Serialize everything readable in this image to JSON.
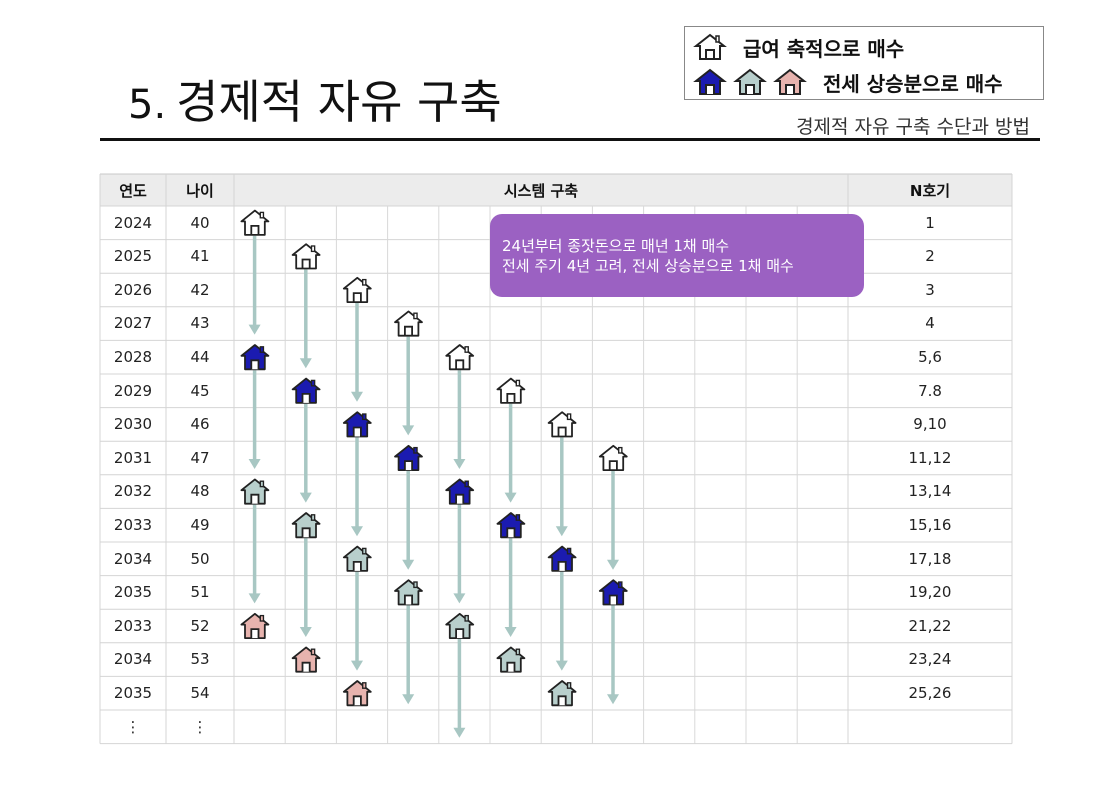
{
  "title": {
    "number": "5.",
    "text": "경제적 자유 구축"
  },
  "subtitle": "경제적 자유 구축 수단과 방법",
  "legend": {
    "salary_label": "급여 축적으로 매수",
    "deposit_label": "전세 상승분으로 매수"
  },
  "colors": {
    "white_house": "#ffffff",
    "blue_house": "#1b1bb0",
    "gray_house": "#b8cfcc",
    "pink_house": "#e7b3ae",
    "arrow": "#a8c7c3",
    "note_bg": "#9b61c2",
    "header_bg": "#ececec"
  },
  "table": {
    "headers": {
      "year": "연도",
      "age": "나이",
      "system": "시스템 구축",
      "n": "N호기"
    },
    "rows": [
      {
        "year": "2024",
        "age": "40",
        "n": "1"
      },
      {
        "year": "2025",
        "age": "41",
        "n": "2"
      },
      {
        "year": "2026",
        "age": "42",
        "n": "3"
      },
      {
        "year": "2027",
        "age": "43",
        "n": "4"
      },
      {
        "year": "2028",
        "age": "44",
        "n": "5,6"
      },
      {
        "year": "2029",
        "age": "45",
        "n": "7.8"
      },
      {
        "year": "2030",
        "age": "46",
        "n": "9,10"
      },
      {
        "year": "2031",
        "age": "47",
        "n": "11,12"
      },
      {
        "year": "2032",
        "age": "48",
        "n": "13,14"
      },
      {
        "year": "2033",
        "age": "49",
        "n": "15,16"
      },
      {
        "year": "2034",
        "age": "50",
        "n": "17,18"
      },
      {
        "year": "2035",
        "age": "51",
        "n": "19,20"
      },
      {
        "year": "2033",
        "age": "52",
        "n": "21,22"
      },
      {
        "year": "2034",
        "age": "53",
        "n": "23,24"
      },
      {
        "year": "2035",
        "age": "54",
        "n": "25,26"
      },
      {
        "year": "⋮",
        "age": "⋮",
        "n": ""
      }
    ]
  },
  "note": {
    "line1": "24년부터 종잣돈으로 매년 1채 매수",
    "line2": "전세 주기 4년 고려, 전세 상승분으로 1채 매수"
  },
  "houses": [
    {
      "col": 0,
      "row": 0,
      "type": "white"
    },
    {
      "col": 1,
      "row": 1,
      "type": "white"
    },
    {
      "col": 2,
      "row": 2,
      "type": "white"
    },
    {
      "col": 3,
      "row": 3,
      "type": "white"
    },
    {
      "col": 0,
      "row": 4,
      "type": "blue"
    },
    {
      "col": 4,
      "row": 4,
      "type": "white"
    },
    {
      "col": 1,
      "row": 5,
      "type": "blue"
    },
    {
      "col": 5,
      "row": 5,
      "type": "white"
    },
    {
      "col": 2,
      "row": 6,
      "type": "blue"
    },
    {
      "col": 6,
      "row": 6,
      "type": "white"
    },
    {
      "col": 3,
      "row": 7,
      "type": "blue"
    },
    {
      "col": 7,
      "row": 7,
      "type": "white"
    },
    {
      "col": 0,
      "row": 8,
      "type": "gray"
    },
    {
      "col": 4,
      "row": 8,
      "type": "blue"
    },
    {
      "col": 1,
      "row": 9,
      "type": "gray"
    },
    {
      "col": 5,
      "row": 9,
      "type": "blue"
    },
    {
      "col": 2,
      "row": 10,
      "type": "gray"
    },
    {
      "col": 6,
      "row": 10,
      "type": "blue"
    },
    {
      "col": 3,
      "row": 11,
      "type": "gray"
    },
    {
      "col": 7,
      "row": 11,
      "type": "blue"
    },
    {
      "col": 0,
      "row": 12,
      "type": "pink"
    },
    {
      "col": 4,
      "row": 12,
      "type": "gray"
    },
    {
      "col": 1,
      "row": 13,
      "type": "pink"
    },
    {
      "col": 5,
      "row": 13,
      "type": "gray"
    },
    {
      "col": 2,
      "row": 14,
      "type": "pink"
    },
    {
      "col": 6,
      "row": 14,
      "type": "gray"
    }
  ],
  "arrows": [
    {
      "col": 0,
      "from_row": 0,
      "to_row": 3
    },
    {
      "col": 0,
      "from_row": 4,
      "to_row": 7
    },
    {
      "col": 0,
      "from_row": 8,
      "to_row": 11
    },
    {
      "col": 1,
      "from_row": 1,
      "to_row": 4
    },
    {
      "col": 1,
      "from_row": 5,
      "to_row": 8
    },
    {
      "col": 1,
      "from_row": 9,
      "to_row": 12
    },
    {
      "col": 2,
      "from_row": 2,
      "to_row": 5
    },
    {
      "col": 2,
      "from_row": 6,
      "to_row": 9
    },
    {
      "col": 2,
      "from_row": 10,
      "to_row": 13
    },
    {
      "col": 3,
      "from_row": 3,
      "to_row": 6
    },
    {
      "col": 3,
      "from_row": 7,
      "to_row": 10
    },
    {
      "col": 3,
      "from_row": 11,
      "to_row": 14
    },
    {
      "col": 4,
      "from_row": 4,
      "to_row": 7
    },
    {
      "col": 4,
      "from_row": 8,
      "to_row": 11
    },
    {
      "col": 4,
      "from_row": 12,
      "to_row": 15
    },
    {
      "col": 5,
      "from_row": 5,
      "to_row": 8
    },
    {
      "col": 5,
      "from_row": 9,
      "to_row": 12
    },
    {
      "col": 6,
      "from_row": 6,
      "to_row": 9
    },
    {
      "col": 6,
      "from_row": 10,
      "to_row": 13
    },
    {
      "col": 7,
      "from_row": 7,
      "to_row": 10
    },
    {
      "col": 7,
      "from_row": 11,
      "to_row": 14
    }
  ]
}
